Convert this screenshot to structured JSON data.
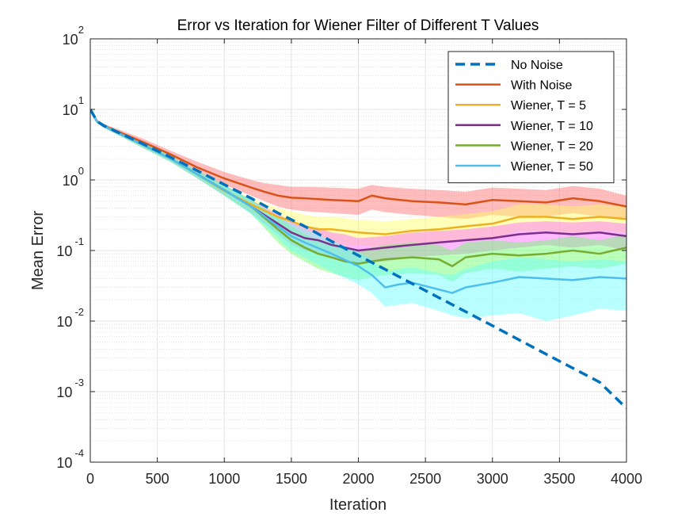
{
  "chart_data": {
    "type": "line",
    "title": "Error vs Iteration for Wiener Filter of Different T Values",
    "xlabel": "Iteration",
    "ylabel": "Mean Error",
    "xlim": [
      0,
      4000
    ],
    "ylim": [
      0.0001,
      100
    ],
    "yscale": "log",
    "grid": true,
    "minor_grid": true,
    "legend_position": "top-right",
    "x_ticks": [
      0,
      500,
      1000,
      1500,
      2000,
      2500,
      3000,
      3500,
      4000
    ],
    "y_ticks": [
      {
        "value": 0.0001,
        "base": "10",
        "exp": "-4"
      },
      {
        "value": 0.001,
        "base": "10",
        "exp": "-3"
      },
      {
        "value": 0.01,
        "base": "10",
        "exp": "-2"
      },
      {
        "value": 0.1,
        "base": "10",
        "exp": "-1"
      },
      {
        "value": 1,
        "base": "10",
        "exp": "0"
      },
      {
        "value": 10,
        "base": "10",
        "exp": "1"
      },
      {
        "value": 100,
        "base": "10",
        "exp": "2"
      }
    ],
    "series": [
      {
        "name": "No Noise",
        "color": "#0072BD",
        "dash": true,
        "x": [
          0,
          50,
          100,
          200,
          400,
          600,
          800,
          1000,
          1200,
          1400,
          1600,
          1800,
          2000,
          2200,
          2400,
          2600,
          2800,
          3000,
          3200,
          3400,
          3600,
          3800,
          4000
        ],
        "y": [
          10,
          6.8,
          5.9,
          4.8,
          3.2,
          2.1,
          1.35,
          0.86,
          0.55,
          0.34,
          0.22,
          0.135,
          0.085,
          0.054,
          0.034,
          0.0215,
          0.0136,
          0.0086,
          0.0054,
          0.0034,
          0.00215,
          0.00136,
          0.00058
        ]
      },
      {
        "name": "With Noise",
        "color": "#D95319",
        "band_color": "#FF6B6B",
        "x": [
          0,
          50,
          100,
          200,
          400,
          600,
          800,
          1000,
          1200,
          1300,
          1400,
          1500,
          1600,
          1800,
          2000,
          2100,
          2200,
          2400,
          2600,
          2800,
          3000,
          3200,
          3400,
          3600,
          3800,
          4000
        ],
        "y": [
          10,
          6.8,
          5.9,
          4.9,
          3.4,
          2.3,
          1.5,
          1.05,
          0.78,
          0.68,
          0.6,
          0.56,
          0.55,
          0.52,
          0.5,
          0.6,
          0.55,
          0.5,
          0.48,
          0.45,
          0.52,
          0.5,
          0.48,
          0.55,
          0.5,
          0.42
        ],
        "lower": [
          10,
          6.5,
          5.6,
          4.5,
          3.0,
          2.0,
          1.25,
          0.85,
          0.6,
          0.5,
          0.42,
          0.38,
          0.36,
          0.34,
          0.32,
          0.38,
          0.35,
          0.32,
          0.3,
          0.28,
          0.32,
          0.3,
          0.3,
          0.34,
          0.3,
          0.27
        ],
        "upper": [
          10,
          7.1,
          6.2,
          5.3,
          3.8,
          2.6,
          1.8,
          1.3,
          1.0,
          0.9,
          0.85,
          0.8,
          0.8,
          0.78,
          0.75,
          0.85,
          0.8,
          0.75,
          0.72,
          0.68,
          0.78,
          0.75,
          0.72,
          0.82,
          0.75,
          0.6
        ]
      },
      {
        "name": "Wiener, T = 5",
        "color": "#EDB120",
        "band_color": "#FFFF66",
        "x": [
          0,
          50,
          100,
          200,
          400,
          600,
          800,
          1000,
          1200,
          1400,
          1500,
          1600,
          1700,
          1800,
          1900,
          2000,
          2200,
          2400,
          2600,
          2800,
          3000,
          3200,
          3400,
          3600,
          3800,
          4000
        ],
        "y": [
          10,
          6.7,
          5.8,
          4.7,
          3.1,
          2.0,
          1.2,
          0.7,
          0.45,
          0.3,
          0.26,
          0.22,
          0.2,
          0.2,
          0.19,
          0.18,
          0.17,
          0.19,
          0.2,
          0.22,
          0.24,
          0.3,
          0.3,
          0.28,
          0.3,
          0.28
        ],
        "lower": [
          10,
          6.4,
          5.5,
          4.4,
          2.8,
          1.8,
          1.05,
          0.6,
          0.36,
          0.22,
          0.18,
          0.15,
          0.13,
          0.13,
          0.12,
          0.12,
          0.11,
          0.12,
          0.13,
          0.14,
          0.15,
          0.19,
          0.19,
          0.18,
          0.19,
          0.18
        ],
        "upper": [
          10,
          7.0,
          6.1,
          5.0,
          3.4,
          2.2,
          1.35,
          0.82,
          0.55,
          0.4,
          0.36,
          0.32,
          0.3,
          0.3,
          0.29,
          0.27,
          0.26,
          0.28,
          0.3,
          0.33,
          0.36,
          0.45,
          0.45,
          0.42,
          0.45,
          0.42
        ]
      },
      {
        "name": "Wiener, T = 10",
        "color": "#7E2F8E",
        "band_color": "#FF66FF",
        "x": [
          0,
          50,
          100,
          200,
          400,
          600,
          800,
          1000,
          1200,
          1400,
          1500,
          1600,
          1700,
          1800,
          1900,
          2000,
          2200,
          2400,
          2600,
          2800,
          3000,
          3200,
          3400,
          3600,
          3800,
          4000
        ],
        "y": [
          10,
          6.7,
          5.8,
          4.7,
          3.1,
          2.0,
          1.2,
          0.72,
          0.42,
          0.24,
          0.18,
          0.15,
          0.14,
          0.12,
          0.11,
          0.1,
          0.11,
          0.12,
          0.13,
          0.14,
          0.15,
          0.17,
          0.18,
          0.17,
          0.18,
          0.16
        ],
        "lower": [
          10,
          6.4,
          5.5,
          4.4,
          2.8,
          1.8,
          1.05,
          0.6,
          0.34,
          0.17,
          0.12,
          0.1,
          0.09,
          0.08,
          0.07,
          0.065,
          0.07,
          0.08,
          0.085,
          0.09,
          0.1,
          0.11,
          0.12,
          0.11,
          0.12,
          0.1
        ],
        "upper": [
          10,
          7.0,
          6.1,
          5.0,
          3.4,
          2.2,
          1.35,
          0.85,
          0.52,
          0.33,
          0.26,
          0.22,
          0.21,
          0.18,
          0.17,
          0.15,
          0.16,
          0.18,
          0.19,
          0.2,
          0.22,
          0.25,
          0.26,
          0.25,
          0.26,
          0.24
        ]
      },
      {
        "name": "Wiener, T = 20",
        "color": "#77AC30",
        "band_color": "#66FF66",
        "x": [
          0,
          50,
          100,
          200,
          400,
          600,
          800,
          1000,
          1200,
          1400,
          1500,
          1600,
          1700,
          1800,
          1900,
          2000,
          2100,
          2200,
          2400,
          2600,
          2700,
          2800,
          3000,
          3200,
          3400,
          3600,
          3800,
          4000
        ],
        "y": [
          10,
          6.7,
          5.8,
          4.7,
          3.1,
          2.0,
          1.2,
          0.72,
          0.42,
          0.2,
          0.14,
          0.11,
          0.09,
          0.08,
          0.07,
          0.065,
          0.07,
          0.075,
          0.08,
          0.075,
          0.06,
          0.08,
          0.09,
          0.085,
          0.09,
          0.1,
          0.09,
          0.11
        ],
        "lower": [
          10,
          6.4,
          5.5,
          4.4,
          2.8,
          1.8,
          1.05,
          0.6,
          0.33,
          0.13,
          0.09,
          0.07,
          0.055,
          0.048,
          0.042,
          0.038,
          0.042,
          0.045,
          0.048,
          0.045,
          0.036,
          0.048,
          0.055,
          0.05,
          0.055,
          0.06,
          0.055,
          0.065
        ],
        "upper": [
          10,
          7.0,
          6.1,
          5.0,
          3.4,
          2.2,
          1.35,
          0.85,
          0.52,
          0.3,
          0.22,
          0.17,
          0.14,
          0.13,
          0.11,
          0.1,
          0.11,
          0.12,
          0.13,
          0.12,
          0.1,
          0.13,
          0.14,
          0.13,
          0.14,
          0.16,
          0.14,
          0.17
        ]
      },
      {
        "name": "Wiener, T = 50",
        "color": "#4DBEEE",
        "band_color": "#66FFFF",
        "x": [
          0,
          50,
          100,
          200,
          400,
          600,
          800,
          1000,
          1200,
          1400,
          1500,
          1600,
          1800,
          2000,
          2100,
          2200,
          2300,
          2400,
          2600,
          2700,
          2800,
          3000,
          3200,
          3400,
          3600,
          3800,
          4000
        ],
        "y": [
          10,
          6.7,
          5.8,
          4.7,
          3.1,
          2.0,
          1.2,
          0.72,
          0.42,
          0.22,
          0.16,
          0.13,
          0.09,
          0.06,
          0.045,
          0.03,
          0.033,
          0.035,
          0.028,
          0.025,
          0.03,
          0.035,
          0.042,
          0.04,
          0.038,
          0.042,
          0.04
        ],
        "lower": [
          10,
          6.4,
          5.5,
          4.4,
          2.8,
          1.8,
          1.05,
          0.6,
          0.33,
          0.15,
          0.1,
          0.08,
          0.05,
          0.033,
          0.025,
          0.016,
          0.017,
          0.018,
          0.014,
          0.012,
          0.011,
          0.012,
          0.013,
          0.01,
          0.012,
          0.015,
          0.014
        ],
        "upper": [
          10,
          7.0,
          6.1,
          5.0,
          3.4,
          2.2,
          1.35,
          0.85,
          0.52,
          0.3,
          0.24,
          0.2,
          0.14,
          0.095,
          0.075,
          0.05,
          0.055,
          0.058,
          0.048,
          0.045,
          0.055,
          0.07,
          0.08,
          0.075,
          0.07,
          0.075,
          0.07
        ]
      }
    ]
  }
}
